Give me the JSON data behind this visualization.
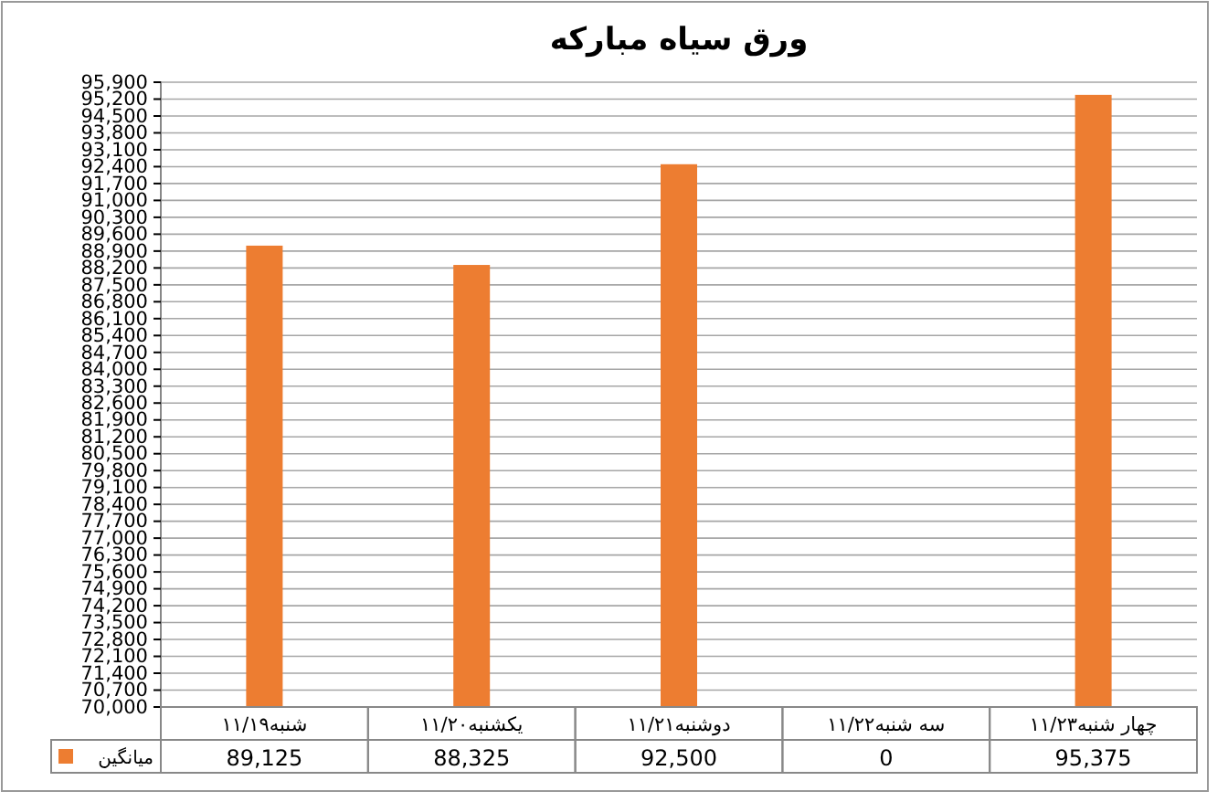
{
  "chart_data": {
    "type": "bar",
    "title": "ورق سیاه مبارکه",
    "categories": [
      "شنبه۱۱/۱۹",
      "یکشنبه۱۱/۲۰",
      "دوشنبه۱۱/۲۱",
      "سه شنبه۱۱/۲۲",
      "چهار شنبه۱۱/۲۳"
    ],
    "series": [
      {
        "name": "میانگین",
        "color": "#ed7d31",
        "values": [
          89125,
          88325,
          92500,
          null,
          95375
        ],
        "value_labels": [
          "89,125",
          "88,325",
          "92,500",
          "0",
          "95,375"
        ]
      }
    ],
    "ylim": [
      70000,
      95900
    ],
    "yticks": [
      {
        "value": 70000,
        "label": "70,000"
      },
      {
        "value": 70700,
        "label": "70,700"
      },
      {
        "value": 71400,
        "label": "71,400"
      },
      {
        "value": 72100,
        "label": "72,100"
      },
      {
        "value": 72800,
        "label": "72,800"
      },
      {
        "value": 73500,
        "label": "73,500"
      },
      {
        "value": 74200,
        "label": "74,200"
      },
      {
        "value": 74900,
        "label": "74,900"
      },
      {
        "value": 75600,
        "label": "75,600"
      },
      {
        "value": 76300,
        "label": "76,300"
      },
      {
        "value": 77000,
        "label": "77,000"
      },
      {
        "value": 77700,
        "label": "77,700"
      },
      {
        "value": 78400,
        "label": "78,400"
      },
      {
        "value": 79100,
        "label": "79,100"
      },
      {
        "value": 79800,
        "label": "79,800"
      },
      {
        "value": 80500,
        "label": "80,500"
      },
      {
        "value": 81200,
        "label": "81,200"
      },
      {
        "value": 81900,
        "label": "81,900"
      },
      {
        "value": 82600,
        "label": "82,600"
      },
      {
        "value": 83300,
        "label": "83,300"
      },
      {
        "value": 84000,
        "label": "84,000"
      },
      {
        "value": 84700,
        "label": "84,700"
      },
      {
        "value": 85400,
        "label": "85,400"
      },
      {
        "value": 86100,
        "label": "86,100"
      },
      {
        "value": 86800,
        "label": "86,800"
      },
      {
        "value": 87500,
        "label": "87,500"
      },
      {
        "value": 88200,
        "label": "88,200"
      },
      {
        "value": 88900,
        "label": "88,900"
      },
      {
        "value": 89600,
        "label": "89,600"
      },
      {
        "value": 90300,
        "label": "90,300"
      },
      {
        "value": 91000,
        "label": "91,000"
      },
      {
        "value": 91700,
        "label": "91,700"
      },
      {
        "value": 92400,
        "label": "92,400"
      },
      {
        "value": 93100,
        "label": "93,100"
      },
      {
        "value": 93800,
        "label": "93,800"
      },
      {
        "value": 94500,
        "label": "94,500"
      },
      {
        "value": 95200,
        "label": "95,200"
      },
      {
        "value": 95900,
        "label": "95,900"
      }
    ],
    "grid": "y",
    "legend": "bottom"
  }
}
